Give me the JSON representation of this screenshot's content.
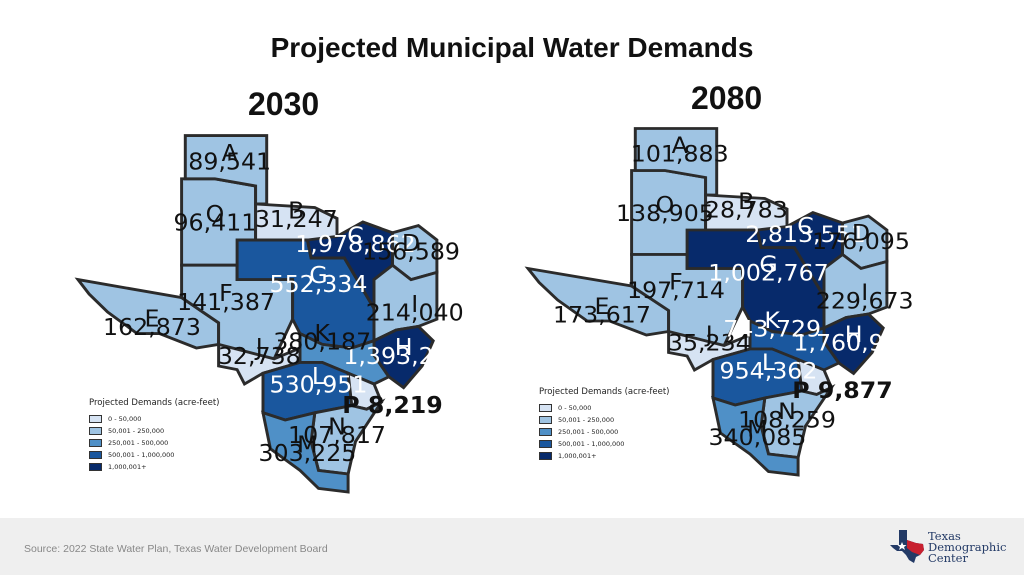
{
  "title": "Projected Municipal Water Demands",
  "colors": {
    "c1": "#d6e3f3",
    "c2": "#9fc4e3",
    "c3": "#4f90c7",
    "c4": "#1a579e",
    "c5": "#072a6b"
  },
  "maps": [
    {
      "year": "2030",
      "regions": {
        "A": {
          "name": "A",
          "value": "89,541",
          "level": "50,001 - 250,000"
        },
        "B": {
          "name": "B",
          "value": "31,247",
          "level": "0 - 50,000"
        },
        "C": {
          "name": "C",
          "value": "1,978,862",
          "level": "1,000,001+"
        },
        "D": {
          "name": "D",
          "value": "156,589",
          "level": "50,001 - 250,000"
        },
        "E": {
          "name": "E",
          "value": "162,873",
          "level": "50,001 - 250,000"
        },
        "F": {
          "name": "F",
          "value": "141,387",
          "level": "50,001 - 250,000"
        },
        "G": {
          "name": "G",
          "value": "552,334",
          "level": "500,001 - 1,000,000"
        },
        "H": {
          "name": "H",
          "value": "1,393,225",
          "level": "1,000,001+"
        },
        "I": {
          "name": "I",
          "value": "214,040",
          "level": "50,001 - 250,000"
        },
        "J": {
          "name": "J",
          "value": "32,738",
          "level": "0 - 50,000"
        },
        "K": {
          "name": "K",
          "value": "380,187",
          "level": "250,001 - 500,000"
        },
        "L": {
          "name": "L",
          "value": "530,951",
          "level": "500,001 - 1,000,000"
        },
        "M": {
          "name": "M",
          "value": "303,225",
          "level": "250,001 - 500,000"
        },
        "N": {
          "name": "N",
          "value": "107,817",
          "level": "50,001 - 250,000"
        },
        "O": {
          "name": "O",
          "value": "96,411",
          "level": "50,001 - 250,000"
        },
        "P": {
          "name": "P",
          "value": "8,219",
          "level": "0 - 50,000"
        }
      },
      "legend": {
        "title": "Projected Demands (acre-feet)",
        "items": [
          "0 - 50,000",
          "50,001 - 250,000",
          "250,001 - 500,000",
          "500,001 - 1,000,000",
          "1,000,001+"
        ]
      }
    },
    {
      "year": "2080",
      "regions": {
        "A": {
          "name": "A",
          "value": "101,883",
          "level": "50,001 - 250,000"
        },
        "B": {
          "name": "B",
          "value": "28,783",
          "level": "0 - 50,000"
        },
        "C": {
          "name": "C",
          "value": "2,813,551",
          "level": "1,000,001+"
        },
        "D": {
          "name": "D",
          "value": "176,095",
          "level": "50,001 - 250,000"
        },
        "E": {
          "name": "E",
          "value": "173,617",
          "level": "50,001 - 250,000"
        },
        "F": {
          "name": "F",
          "value": "197,714",
          "level": "50,001 - 250,000"
        },
        "G": {
          "name": "G",
          "value": "1,002,767",
          "level": "1,000,001+"
        },
        "H": {
          "name": "H",
          "value": "1,760,938",
          "level": "1,000,001+"
        },
        "I": {
          "name": "I",
          "value": "229,673",
          "level": "50,001 - 250,000"
        },
        "J": {
          "name": "J",
          "value": "35,234",
          "level": "0 - 50,000"
        },
        "K": {
          "name": "K",
          "value": "743,729",
          "level": "500,001 - 1,000,000"
        },
        "L": {
          "name": "L",
          "value": "954,362",
          "level": "500,001 - 1,000,000"
        },
        "M": {
          "name": "M",
          "value": "340,085",
          "level": "250,001 - 500,000"
        },
        "N": {
          "name": "N",
          "value": "108,259",
          "level": "50,001 - 250,000"
        },
        "O": {
          "name": "O",
          "value": "138,905",
          "level": "50,001 - 250,000"
        },
        "P": {
          "name": "P",
          "value": "9,877",
          "level": "0 - 50,000"
        }
      },
      "legend": {
        "title": "Projected Demands (acre-feet)",
        "items": [
          "0 - 50,000",
          "50,001 - 250,000",
          "250,001 - 500,000",
          "500,001 - 1,000,000",
          "1,000,001+"
        ]
      }
    }
  ],
  "footer": {
    "source": "Source: 2022 State Water Plan, Texas Water Development Board",
    "logo_line1": "Texas",
    "logo_line2": "Demographic",
    "logo_line3": "Center"
  }
}
